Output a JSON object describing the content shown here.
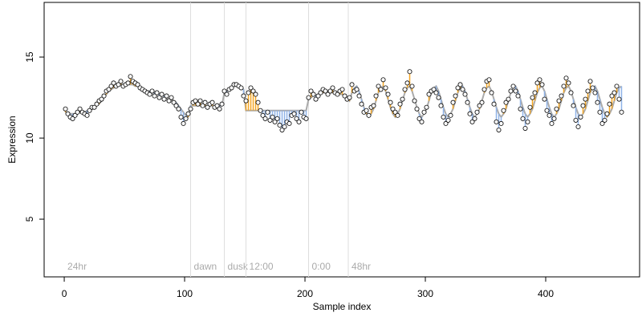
{
  "chart_data": {
    "type": "scatter",
    "x_label": "Sample index",
    "y_label": "Expression",
    "xlim": [
      -16.7,
      478
    ],
    "ylim": [
      1.44,
      18.37
    ],
    "xticks": [
      0,
      100,
      200,
      300,
      400
    ],
    "yticks": [
      5,
      10,
      15
    ],
    "segments": [
      {
        "start": 0,
        "label": "24hr"
      },
      {
        "start": 105,
        "label": "dawn"
      },
      {
        "start": 133,
        "label": "dusk"
      },
      {
        "start": 151,
        "label": "12:00"
      },
      {
        "start": 203,
        "label": "0:00"
      },
      {
        "start": 236,
        "label": "48hr"
      }
    ],
    "up_color": "#f5a623",
    "down_color": "#8fb3e8",
    "fit_color": "#aaaaaa",
    "point_color": "#ffffff",
    "divider_color": "#dddddd",
    "x": [
      1,
      3,
      5,
      7,
      9,
      11,
      13,
      15,
      17,
      19,
      21,
      23,
      25,
      27,
      29,
      31,
      33,
      35,
      37,
      39,
      41,
      43,
      45,
      47,
      49,
      51,
      53,
      55,
      57,
      59,
      61,
      63,
      65,
      67,
      69,
      71,
      73,
      75,
      77,
      79,
      81,
      83,
      85,
      87,
      89,
      91,
      93,
      95,
      97,
      99,
      101,
      103,
      105,
      107,
      109,
      111,
      113,
      115,
      117,
      119,
      121,
      123,
      125,
      127,
      129,
      131,
      133,
      135,
      137,
      139,
      141,
      143,
      145,
      147,
      149,
      151,
      153,
      155,
      157,
      159,
      161,
      163,
      165,
      167,
      169,
      171,
      173,
      175,
      177,
      179,
      181,
      183,
      185,
      187,
      189,
      191,
      193,
      195,
      197,
      199,
      201,
      203,
      205,
      207,
      209,
      211,
      213,
      215,
      217,
      219,
      221,
      223,
      225,
      227,
      229,
      231,
      233,
      235,
      237,
      239,
      241,
      243,
      245,
      247,
      249,
      251,
      253,
      255,
      257,
      259,
      261,
      263,
      265,
      267,
      269,
      271,
      273,
      275,
      277,
      279,
      281,
      283,
      285,
      287,
      289,
      291,
      293,
      295,
      297,
      299,
      301,
      303,
      305,
      307,
      309,
      311,
      313,
      315,
      317,
      319,
      321,
      323,
      325,
      327,
      329,
      331,
      333,
      335,
      337,
      339,
      341,
      343,
      345,
      347,
      349,
      351,
      353,
      355,
      357,
      359,
      361,
      363,
      365,
      367,
      369,
      371,
      373,
      375,
      377,
      379,
      381,
      383,
      385,
      387,
      389,
      391,
      393,
      395,
      397,
      399,
      401,
      403,
      405,
      407,
      409,
      411,
      413,
      415,
      417,
      419,
      421,
      423,
      425,
      427,
      429,
      431,
      433,
      435,
      437,
      439,
      441,
      443,
      445,
      447,
      449,
      451,
      453,
      455,
      457,
      459,
      461,
      463
    ],
    "y": [
      11.8,
      11.5,
      11.3,
      11.2,
      11.4,
      11.6,
      11.8,
      11.6,
      11.5,
      11.4,
      11.7,
      11.9,
      11.9,
      12.1,
      12.3,
      12.4,
      12.6,
      12.9,
      13.0,
      13.2,
      13.4,
      13.2,
      13.3,
      13.5,
      13.2,
      13.3,
      13.4,
      13.8,
      13.5,
      13.4,
      13.3,
      13.1,
      13.0,
      12.9,
      12.8,
      12.7,
      12.9,
      12.6,
      12.8,
      12.5,
      12.7,
      12.4,
      12.6,
      12.3,
      12.5,
      12.2,
      12.0,
      11.8,
      11.3,
      10.9,
      11.2,
      11.5,
      11.8,
      12.2,
      12.3,
      12.1,
      12.3,
      12.0,
      12.2,
      11.9,
      12.1,
      12.2,
      11.9,
      12.0,
      11.8,
      12.1,
      12.9,
      12.7,
      13.0,
      13.1,
      13.3,
      13.3,
      13.2,
      13.1,
      12.6,
      12.3,
      12.8,
      13.1,
      12.9,
      12.7,
      12.2,
      11.7,
      11.4,
      11.2,
      11.6,
      11.1,
      11.3,
      11.0,
      11.2,
      10.8,
      10.5,
      10.7,
      11.0,
      10.9,
      11.4,
      11.5,
      11.2,
      11.0,
      11.6,
      11.3,
      11.2,
      12.5,
      12.9,
      12.7,
      12.4,
      12.6,
      12.8,
      13.0,
      12.9,
      12.7,
      12.9,
      13.1,
      12.8,
      12.7,
      12.9,
      13.0,
      12.6,
      12.4,
      12.5,
      13.3,
      12.9,
      13.0,
      12.6,
      12.1,
      11.6,
      11.7,
      11.4,
      11.9,
      12.0,
      12.6,
      13.2,
      13.0,
      13.6,
      13.1,
      12.7,
      12.2,
      11.8,
      11.6,
      11.4,
      12.1,
      12.4,
      13.0,
      13.4,
      14.1,
      13.2,
      12.3,
      11.8,
      11.2,
      11.0,
      11.6,
      11.9,
      12.7,
      12.9,
      13.0,
      12.8,
      12.5,
      12.0,
      11.3,
      10.9,
      11.1,
      11.4,
      12.2,
      12.6,
      13.1,
      13.3,
      13.0,
      12.7,
      12.2,
      11.5,
      11.0,
      11.2,
      11.6,
      12.0,
      12.2,
      13.0,
      13.5,
      13.6,
      12.8,
      12.1,
      11.0,
      10.5,
      10.9,
      11.7,
      12.2,
      12.4,
      12.9,
      13.2,
      12.9,
      12.6,
      11.8,
      11.2,
      10.6,
      11.0,
      11.9,
      12.5,
      12.8,
      13.4,
      13.6,
      13.3,
      12.4,
      11.7,
      11.4,
      10.9,
      11.2,
      11.8,
      12.3,
      12.6,
      13.2,
      13.7,
      13.4,
      12.8,
      12.0,
      11.1,
      10.7,
      11.3,
      12.0,
      12.4,
      12.9,
      13.5,
      13.1,
      12.8,
      12.2,
      11.6,
      10.9,
      11.1,
      11.5,
      12.1,
      12.6,
      12.8,
      13.2,
      12.4,
      11.6
    ],
    "fit": [
      11.6,
      11.5,
      11.5,
      11.5,
      11.5,
      11.5,
      11.6,
      11.6,
      11.6,
      11.7,
      11.7,
      11.8,
      11.9,
      12.0,
      12.1,
      12.3,
      12.5,
      12.7,
      12.9,
      13.0,
      13.1,
      13.2,
      13.2,
      13.3,
      13.3,
      13.3,
      13.3,
      13.3,
      13.3,
      13.2,
      13.2,
      13.1,
      13.0,
      13.0,
      12.9,
      12.9,
      12.8,
      12.8,
      12.7,
      12.7,
      12.6,
      12.6,
      12.5,
      12.4,
      12.4,
      12.3,
      12.2,
      12.0,
      11.8,
      11.6,
      11.4,
      11.3,
      12.0,
      12.0,
      12.0,
      12.0,
      12.0,
      12.0,
      12.0,
      12.0,
      12.0,
      12.0,
      12.0,
      12.0,
      12.0,
      12.0,
      12.8,
      12.9,
      13.0,
      13.1,
      13.2,
      13.2,
      13.2,
      13.1,
      13.0,
      11.7,
      11.7,
      11.7,
      11.7,
      11.7,
      11.7,
      11.7,
      11.7,
      11.7,
      11.7,
      11.7,
      11.7,
      11.7,
      11.7,
      11.7,
      11.7,
      11.7,
      11.7,
      11.7,
      11.7,
      11.7,
      11.7,
      11.7,
      11.7,
      11.7,
      11.7,
      12.4,
      12.5,
      12.6,
      12.6,
      12.7,
      12.7,
      12.8,
      12.8,
      12.8,
      12.8,
      12.8,
      12.8,
      12.8,
      12.7,
      12.7,
      12.6,
      12.5,
      12.3,
      12.8,
      13.1,
      13.2,
      12.9,
      12.4,
      11.9,
      11.5,
      11.3,
      11.5,
      11.8,
      12.3,
      12.8,
      13.1,
      13.2,
      12.9,
      12.4,
      11.9,
      11.5,
      11.3,
      11.5,
      11.8,
      12.3,
      12.8,
      13.1,
      13.2,
      12.9,
      12.4,
      11.9,
      11.5,
      11.3,
      11.5,
      11.8,
      12.3,
      12.8,
      13.1,
      13.2,
      12.9,
      12.4,
      11.9,
      11.5,
      11.3,
      11.5,
      11.8,
      12.3,
      12.8,
      13.1,
      13.2,
      12.9,
      12.4,
      11.9,
      11.5,
      11.3,
      11.5,
      11.8,
      12.3,
      12.8,
      13.1,
      13.2,
      12.9,
      12.4,
      11.9,
      11.5,
      11.3,
      11.5,
      11.8,
      12.3,
      12.8,
      13.1,
      13.2,
      12.9,
      12.4,
      11.9,
      11.5,
      11.3,
      11.5,
      11.8,
      12.3,
      12.8,
      13.1,
      13.2,
      12.9,
      12.4,
      11.9,
      11.5,
      11.3,
      11.5,
      11.8,
      12.3,
      12.8,
      13.1,
      13.2,
      12.9,
      12.4,
      11.9,
      11.5,
      11.3,
      11.5,
      11.8,
      12.3,
      12.8,
      13.1,
      13.2,
      12.9,
      12.4,
      11.9,
      11.5,
      11.3,
      11.5,
      11.8,
      12.3,
      12.8,
      13.1,
      13.2
    ]
  }
}
